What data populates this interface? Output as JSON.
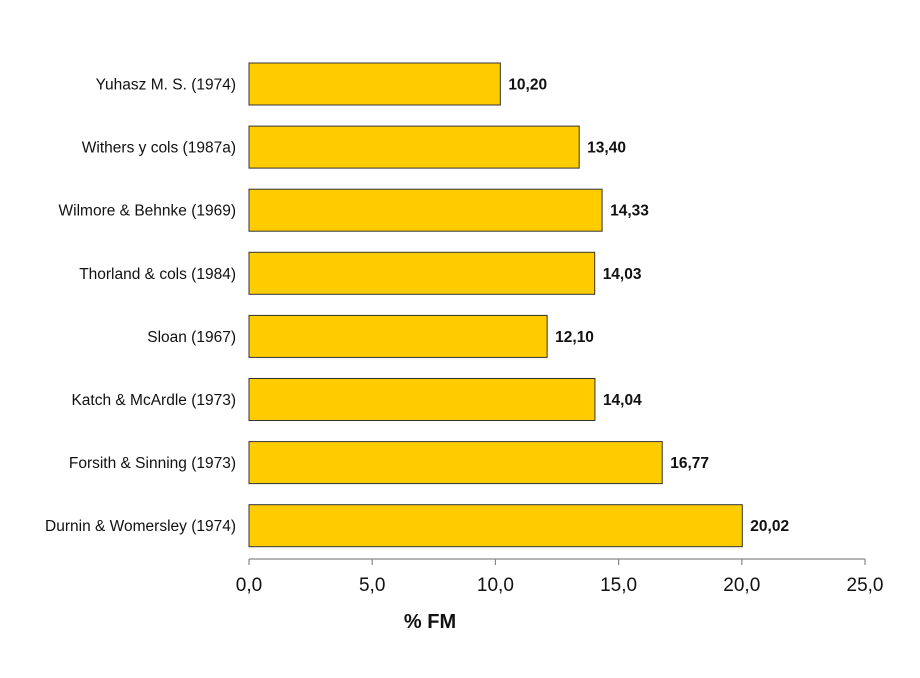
{
  "chart_data": {
    "type": "bar",
    "orientation": "horizontal",
    "categories": [
      "Yuhasz M. S. (1974)",
      "Withers y cols (1987a)",
      "Wilmore & Behnke (1969)",
      "Thorland & cols (1984)",
      "Sloan (1967)",
      "Katch & McArdle (1973)",
      "Forsith & Sinning (1973)",
      "Durnin & Womersley (1974)"
    ],
    "values": [
      10.2,
      13.4,
      14.33,
      14.03,
      12.1,
      14.04,
      16.77,
      20.02
    ],
    "value_labels": [
      "10,20",
      "13,40",
      "14,33",
      "14,03",
      "12,10",
      "14,04",
      "16,77",
      "20,02"
    ],
    "xlabel": "% FM",
    "ylabel": "",
    "xlim": [
      0,
      25
    ],
    "ticks": [
      0,
      5,
      10,
      15,
      20,
      25
    ],
    "tick_labels": [
      "0,0",
      "5,0",
      "10,0",
      "15,0",
      "20,0",
      "25,0"
    ],
    "grid": false,
    "legend": "none",
    "bar_color": "#FFCC00",
    "bar_edge_color": "#333333"
  }
}
